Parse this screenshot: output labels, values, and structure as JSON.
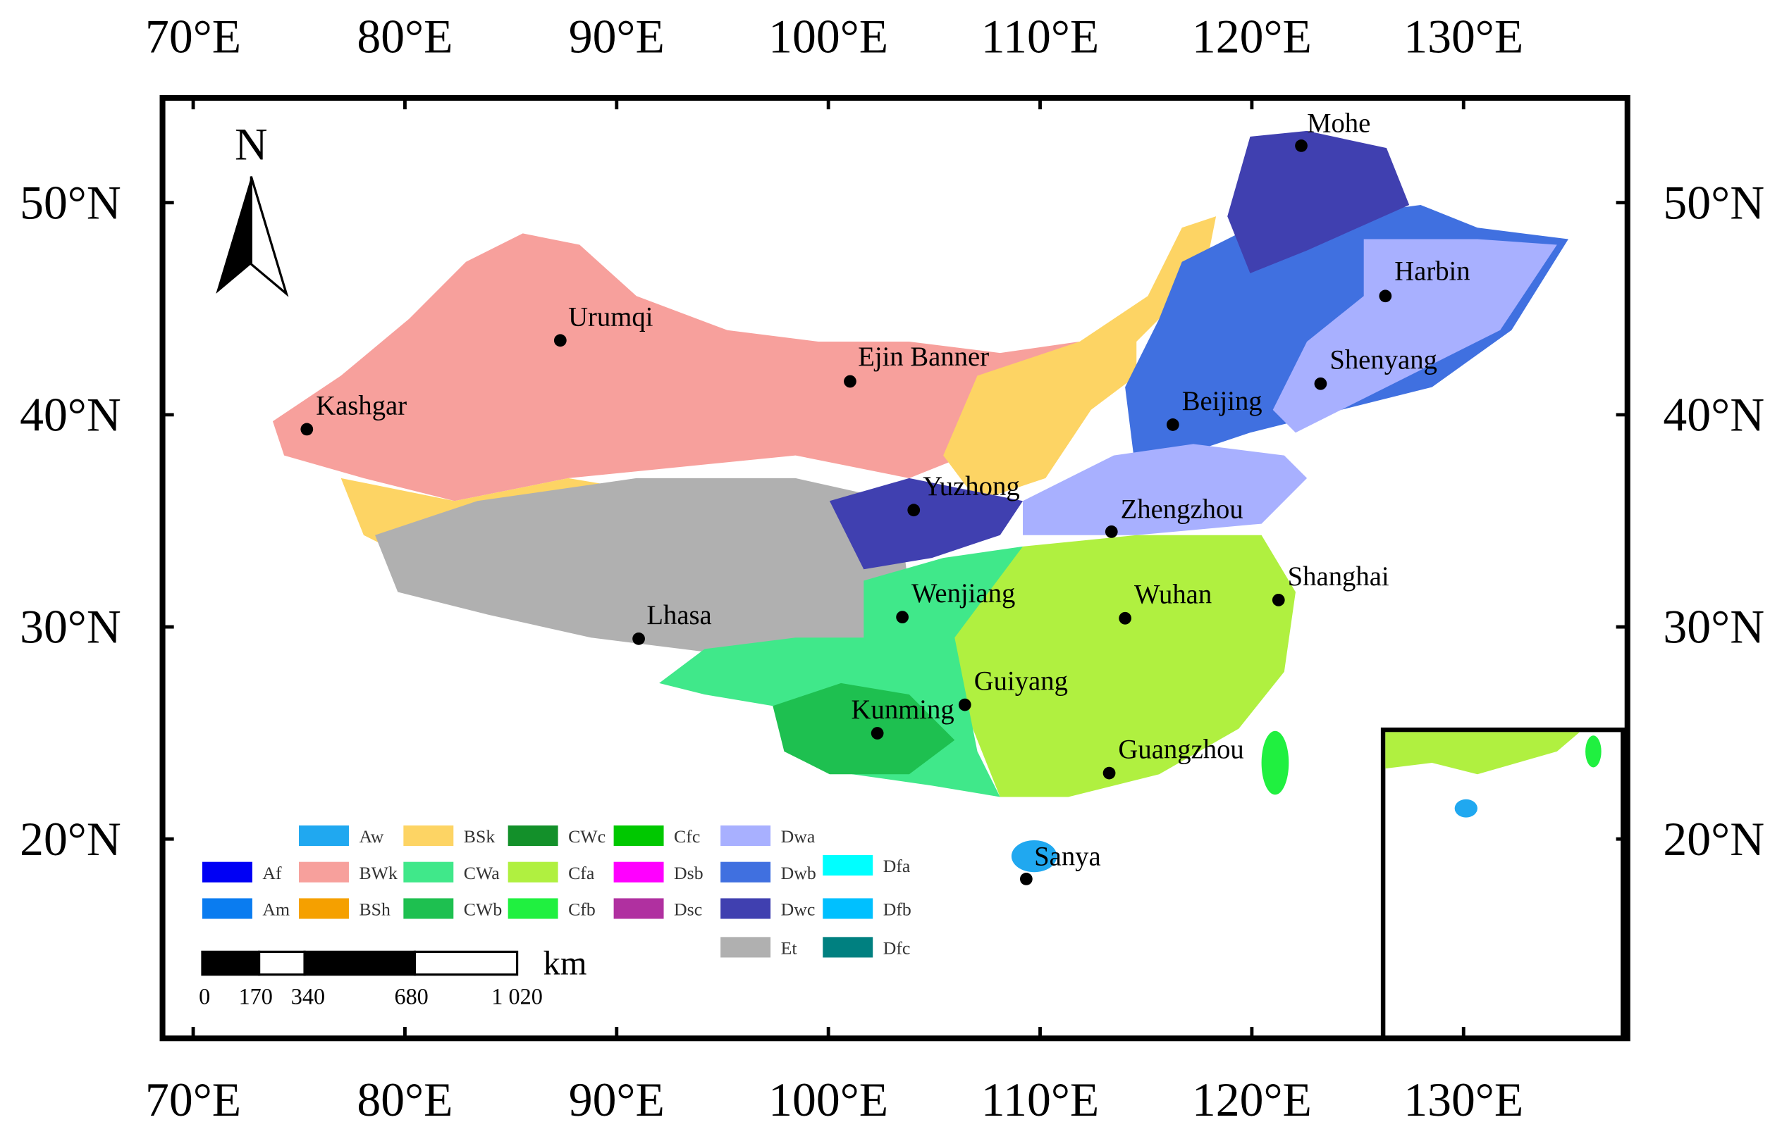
{
  "map": {
    "lon_ticks": [
      "70°E",
      "80°E",
      "90°E",
      "100°E",
      "110°E",
      "120°E",
      "130°E"
    ],
    "lat_ticks": [
      "50°N",
      "40°N",
      "30°N",
      "20°N"
    ],
    "north": "N",
    "cities": [
      "Mohe",
      "Harbin",
      "Shenyang",
      "Beijing",
      "Ejin Banner",
      "Urumqi",
      "Kashgar",
      "Yuzhong",
      "Zhengzhou",
      "Shanghai",
      "Wenjiang",
      "Wuhan",
      "Lhasa",
      "Guiyang",
      "Kunming",
      "Guangzhou",
      "Sanya"
    ],
    "legend": [
      {
        "label": "Af",
        "color": "#0000f5"
      },
      {
        "label": "Am",
        "color": "#0a7cf0"
      },
      {
        "label": "Aw",
        "color": "#20a8f0"
      },
      {
        "label": "BWk",
        "color": "#f7a09c"
      },
      {
        "label": "BSh",
        "color": "#f5a000"
      },
      {
        "label": "BSk",
        "color": "#fdd464"
      },
      {
        "label": "CWa",
        "color": "#40e88a"
      },
      {
        "label": "CWb",
        "color": "#1ec050"
      },
      {
        "label": "CWc",
        "color": "#13902a"
      },
      {
        "label": "Cfa",
        "color": "#b0f040"
      },
      {
        "label": "Cfb",
        "color": "#20f040"
      },
      {
        "label": "Cfc",
        "color": "#00c800"
      },
      {
        "label": "Dsb",
        "color": "#ff00ff"
      },
      {
        "label": "Dsc",
        "color": "#b030a0"
      },
      {
        "label": "Dwa",
        "color": "#a8b0ff"
      },
      {
        "label": "Dwb",
        "color": "#4070e0"
      },
      {
        "label": "Dwc",
        "color": "#4040b0"
      },
      {
        "label": "Et",
        "color": "#b0b0b0"
      },
      {
        "label": "Dfa",
        "color": "#00ffff"
      },
      {
        "label": "Dfb",
        "color": "#00c0ff"
      },
      {
        "label": "Dfc",
        "color": "#008080"
      }
    ],
    "scale_bar": {
      "labels": [
        "0",
        "170",
        "340",
        "680",
        "1 020"
      ],
      "unit": "km"
    }
  }
}
